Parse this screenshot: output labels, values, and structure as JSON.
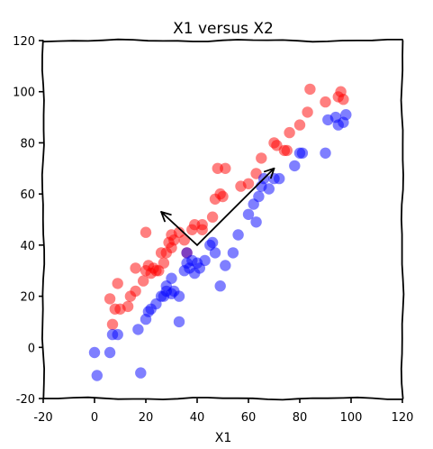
{
  "chart_data": {
    "type": "scatter",
    "title": "X1 versus X2",
    "xlabel": "X1",
    "ylabel": "",
    "xlim": [
      -20,
      120
    ],
    "ylim": [
      -20,
      120
    ],
    "xticks": [
      "-20",
      "0",
      "20",
      "40",
      "60",
      "80",
      "100",
      "120"
    ],
    "yticks": [
      "-20",
      "0",
      "20",
      "40",
      "60",
      "80",
      "100",
      "120"
    ],
    "grid": false,
    "legend": "none",
    "series": [
      {
        "color": "#ff0000",
        "points": [
          [
            6,
            19
          ],
          [
            8,
            15
          ],
          [
            7,
            9
          ],
          [
            10,
            15
          ],
          [
            9,
            25
          ],
          [
            13,
            16
          ],
          [
            14,
            20
          ],
          [
            16,
            22
          ],
          [
            16,
            31
          ],
          [
            19,
            26
          ],
          [
            20,
            45
          ],
          [
            20,
            30
          ],
          [
            21,
            32
          ],
          [
            22,
            29
          ],
          [
            23,
            31
          ],
          [
            24,
            30
          ],
          [
            25,
            30
          ],
          [
            26,
            37
          ],
          [
            27,
            33
          ],
          [
            28,
            37
          ],
          [
            29,
            41
          ],
          [
            30,
            44
          ],
          [
            30,
            39
          ],
          [
            31,
            42
          ],
          [
            33,
            45
          ],
          [
            35,
            42
          ],
          [
            36,
            37
          ],
          [
            38,
            46
          ],
          [
            39,
            48
          ],
          [
            42,
            46
          ],
          [
            42,
            48
          ],
          [
            46,
            51
          ],
          [
            47,
            58
          ],
          [
            48,
            70
          ],
          [
            49,
            60
          ],
          [
            50,
            59
          ],
          [
            51,
            70
          ],
          [
            57,
            63
          ],
          [
            60,
            64
          ],
          [
            63,
            68
          ],
          [
            65,
            74
          ],
          [
            70,
            80
          ],
          [
            71,
            79
          ],
          [
            74,
            77
          ],
          [
            75,
            77
          ],
          [
            76,
            84
          ],
          [
            80,
            87
          ],
          [
            83,
            92
          ],
          [
            84,
            101
          ],
          [
            90,
            96
          ],
          [
            95,
            98
          ],
          [
            96,
            100
          ],
          [
            97,
            97
          ]
        ]
      },
      {
        "color": "#0000ff",
        "points": [
          [
            0,
            -2
          ],
          [
            1,
            -11
          ],
          [
            6,
            -2
          ],
          [
            7,
            5
          ],
          [
            9,
            5
          ],
          [
            17,
            7
          ],
          [
            18,
            -10
          ],
          [
            20,
            11
          ],
          [
            21,
            14
          ],
          [
            22,
            15
          ],
          [
            24,
            17
          ],
          [
            26,
            20
          ],
          [
            27,
            20
          ],
          [
            28,
            22
          ],
          [
            28,
            24
          ],
          [
            30,
            27
          ],
          [
            30,
            21
          ],
          [
            31,
            22
          ],
          [
            33,
            10
          ],
          [
            33,
            20
          ],
          [
            35,
            30
          ],
          [
            36,
            33
          ],
          [
            36,
            37
          ],
          [
            37,
            31
          ],
          [
            38,
            34
          ],
          [
            39,
            29
          ],
          [
            40,
            33
          ],
          [
            41,
            31
          ],
          [
            43,
            34
          ],
          [
            45,
            40
          ],
          [
            46,
            41
          ],
          [
            47,
            37
          ],
          [
            49,
            24
          ],
          [
            51,
            32
          ],
          [
            54,
            37
          ],
          [
            56,
            44
          ],
          [
            60,
            52
          ],
          [
            62,
            56
          ],
          [
            63,
            49
          ],
          [
            64,
            59
          ],
          [
            65,
            63
          ],
          [
            66,
            66
          ],
          [
            68,
            62
          ],
          [
            70,
            66
          ],
          [
            72,
            66
          ],
          [
            78,
            71
          ],
          [
            80,
            76
          ],
          [
            81,
            76
          ],
          [
            90,
            76
          ],
          [
            91,
            89
          ],
          [
            94,
            90
          ],
          [
            95,
            87
          ],
          [
            97,
            88
          ],
          [
            98,
            91
          ]
        ]
      }
    ],
    "annotations": [
      {
        "type": "arrow",
        "from": [
          40,
          40
        ],
        "to": [
          70,
          70
        ]
      },
      {
        "type": "arrow",
        "from": [
          40,
          40
        ],
        "to": [
          26,
          53
        ]
      }
    ]
  }
}
